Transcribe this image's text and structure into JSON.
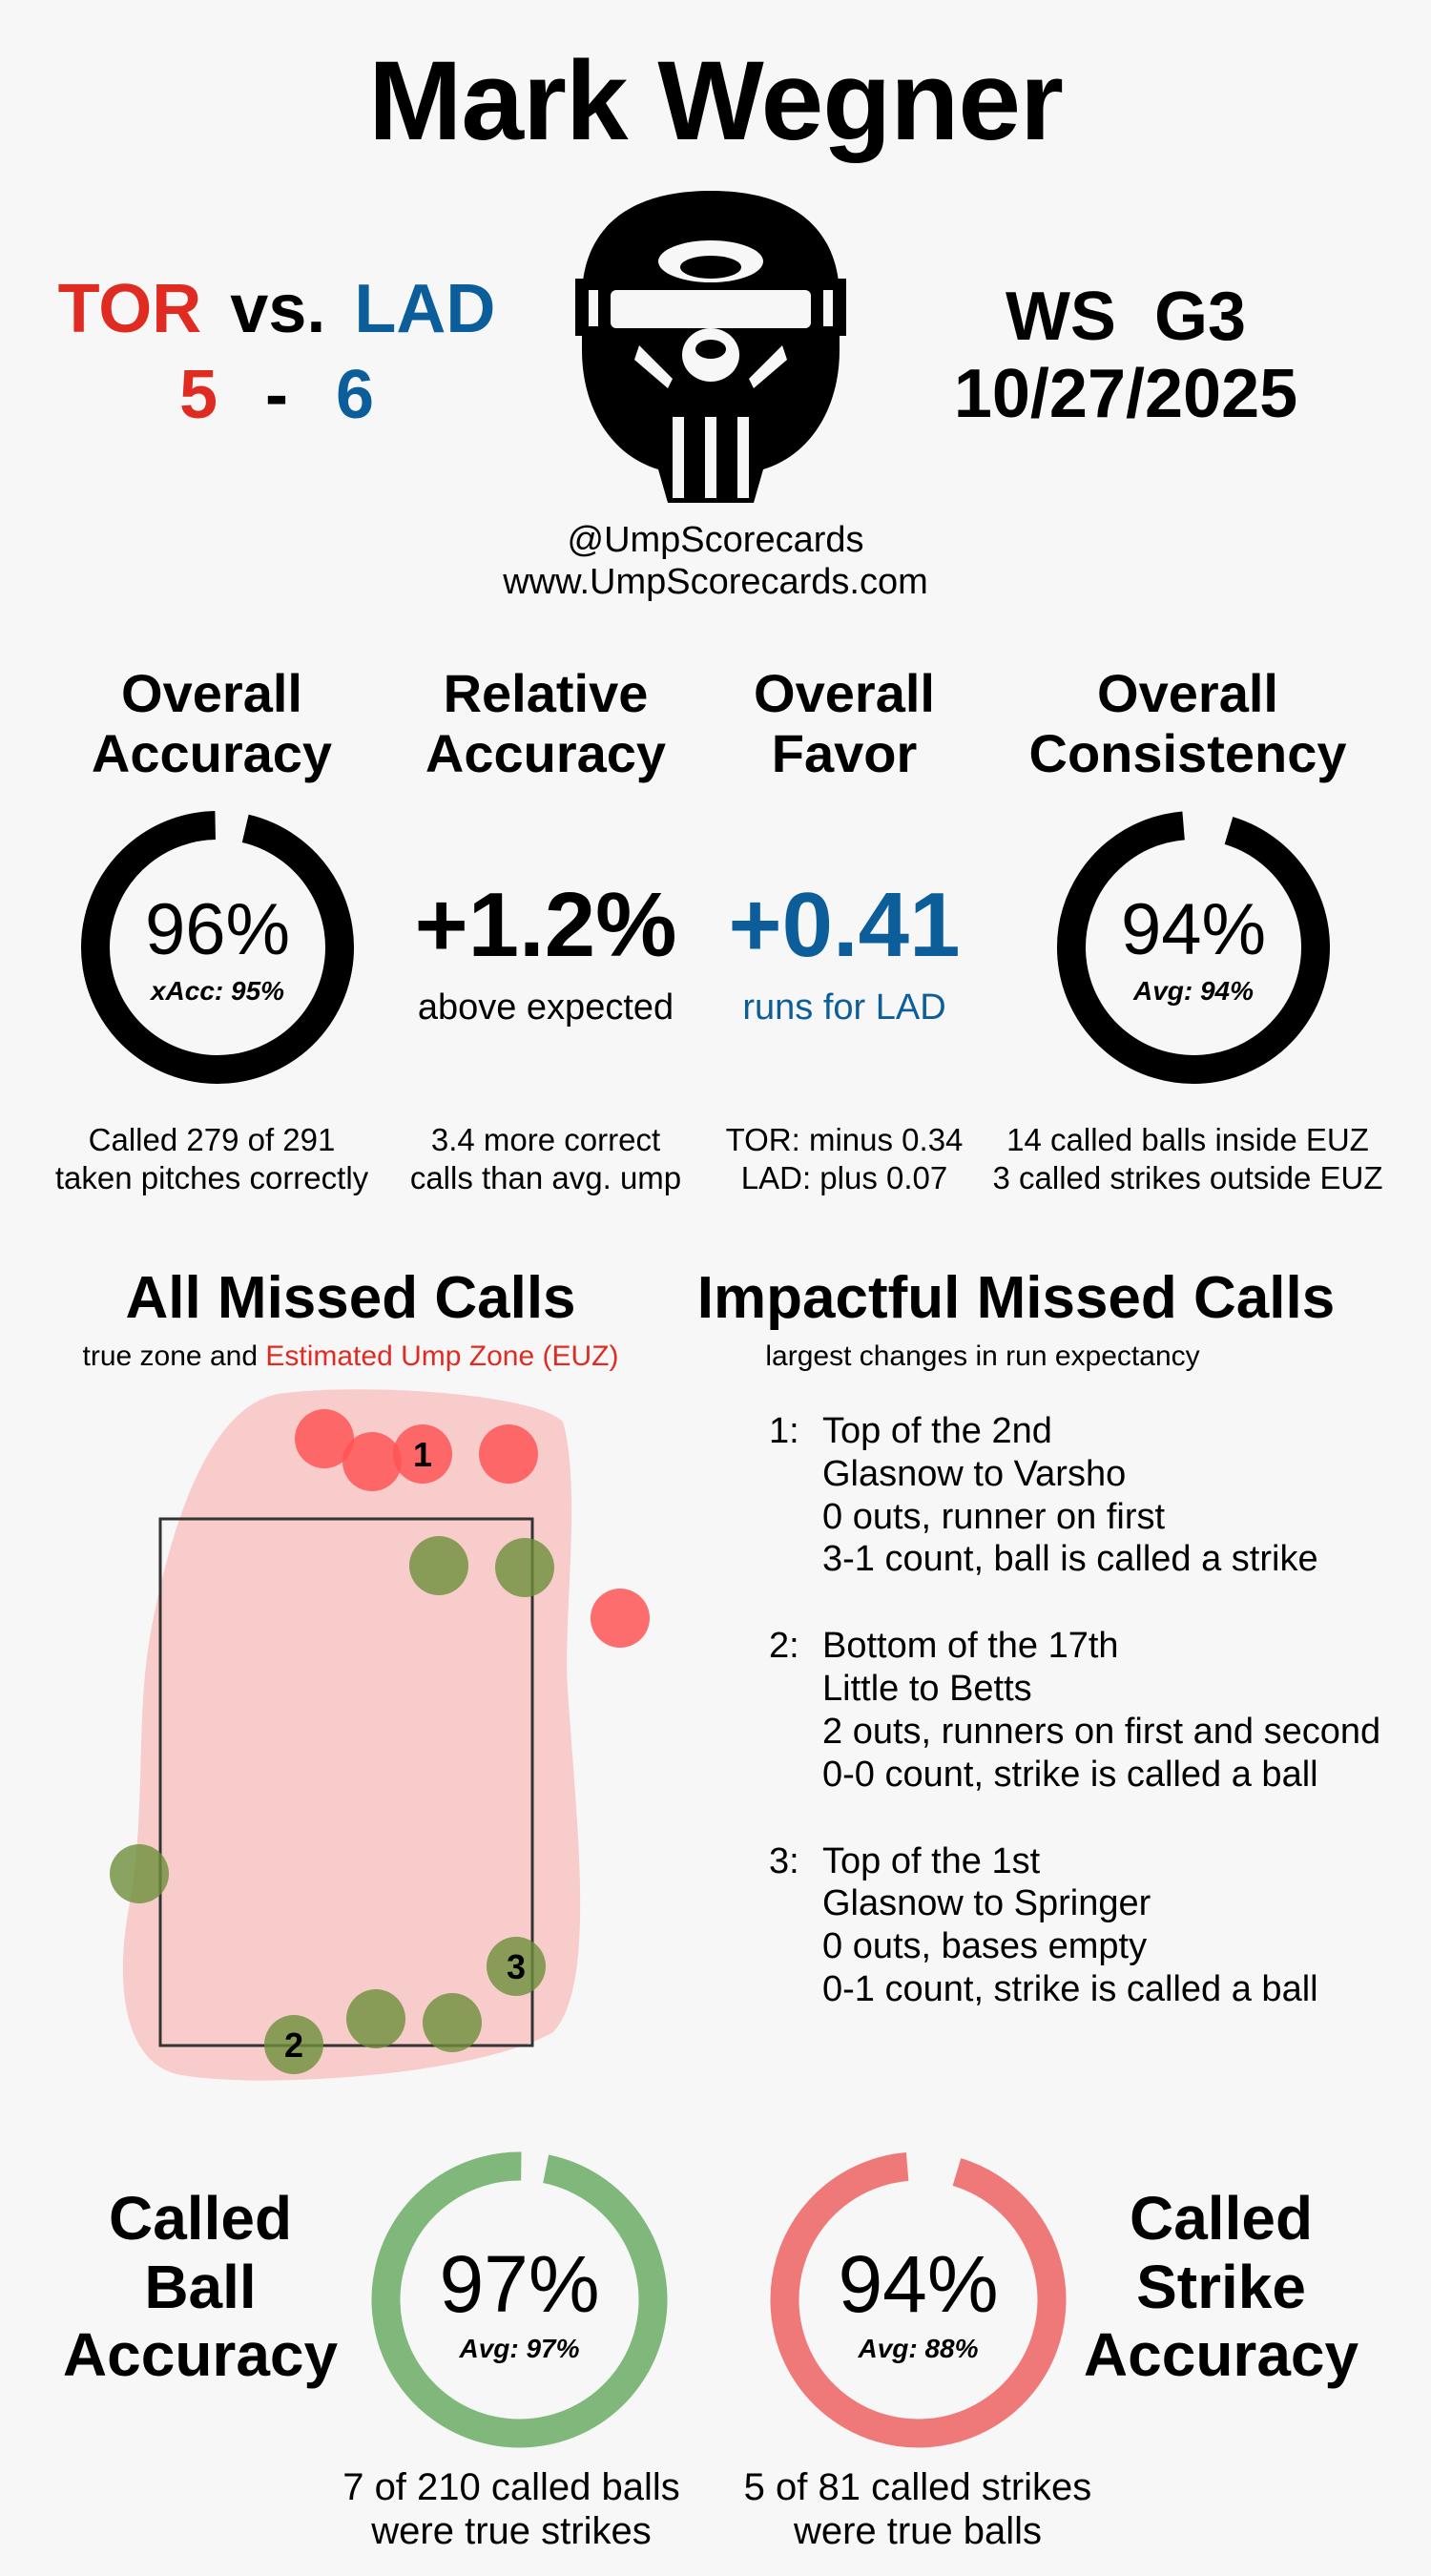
{
  "title": "Mark Wegner",
  "matchup": {
    "away": {
      "abbr": "TOR",
      "score": "5",
      "color": "#e02b22"
    },
    "vs": "vs.",
    "dash": "-",
    "home": {
      "abbr": "LAD",
      "score": "6",
      "color": "#0c5e9b"
    }
  },
  "game": {
    "label": "WS  G3",
    "date": "10/27/2025"
  },
  "handle": "@UmpScorecards",
  "website": "www.UmpScorecards.com",
  "stats": {
    "overall_accuracy": {
      "heading_1": "Overall",
      "heading_2": "Accuracy",
      "value": "96%",
      "sub": "xAcc: 95%",
      "pct": 0.96,
      "foot_1": "Called 279 of 291",
      "foot_2": "taken pitches correctly"
    },
    "relative_accuracy": {
      "heading_1": "Relative",
      "heading_2": "Accuracy",
      "value": "+1.2%",
      "sub": "above expected",
      "foot_1": "3.4 more correct",
      "foot_2": "calls than avg. ump"
    },
    "overall_favor": {
      "heading_1": "Overall",
      "heading_2": "Favor",
      "value": "+0.41",
      "sub": "runs for LAD",
      "foot_1": "TOR: minus 0.34",
      "foot_2": "LAD: plus 0.07"
    },
    "overall_consistency": {
      "heading_1": "Overall",
      "heading_2": "Consistency",
      "value": "94%",
      "sub": "Avg: 94%",
      "pct": 0.94,
      "foot_1": "14 called balls inside EUZ",
      "foot_2": "3 called strikes outside EUZ"
    }
  },
  "missed_calls": {
    "heading": "All Missed Calls",
    "sub_prefix": "true zone and",
    "sub_highlight": "Estimated Ump Zone (EUZ)",
    "ball_called_strike_color": "#ff5555",
    "strike_called_ball_color": "#6b8f3a",
    "labels": [
      "1",
      "2",
      "3"
    ]
  },
  "impactful": {
    "heading": "Impactful Missed Calls",
    "sub": "largest changes in run expectancy",
    "calls": [
      {
        "num": "1:",
        "line1": "Top of the 2nd",
        "line2": "Glasnow to Varsho",
        "line3": "0 outs, runner on first",
        "line4": "3-1 count, ball is called a strike"
      },
      {
        "num": "2:",
        "line1": "Bottom of the 17th",
        "line2": "Little to Betts",
        "line3": "2 outs, runners on first and second",
        "line4": "0-0 count, strike is called a ball"
      },
      {
        "num": "3:",
        "line1": "Top of the 1st",
        "line2": "Glasnow to Springer",
        "line3": "0 outs, bases empty",
        "line4": "0-1 count, strike is called a ball"
      }
    ]
  },
  "called_ball": {
    "label_1": "Called",
    "label_2": "Ball",
    "label_3": "Accuracy",
    "value": "97%",
    "sub": "Avg: 97%",
    "pct": 0.97,
    "color": "#7fb87a",
    "foot_1": "7 of 210 called balls",
    "foot_2": "were true strikes"
  },
  "called_strike": {
    "label_1": "Called",
    "label_2": "Strike",
    "label_3": "Accuracy",
    "value": "94%",
    "sub": "Avg: 88%",
    "pct": 0.94,
    "color": "#ef7878",
    "foot_1": "5 of 81 called strikes",
    "foot_2": "were true balls"
  }
}
